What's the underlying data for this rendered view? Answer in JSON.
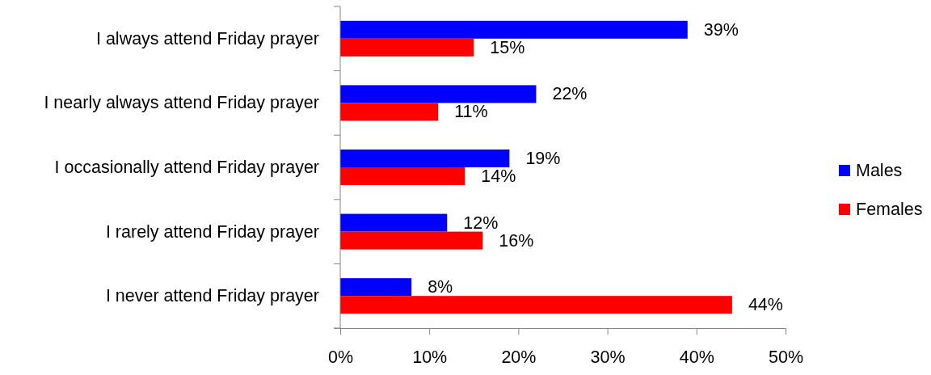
{
  "chart_data": {
    "type": "bar",
    "orientation": "horizontal",
    "categories": [
      "I always attend Friday prayer",
      "I nearly always attend Friday prayer",
      "I occasionally attend Friday prayer",
      "I rarely attend Friday prayer",
      "I never attend Friday prayer"
    ],
    "series": [
      {
        "name": "Males",
        "color": "#0000ff",
        "values": [
          39,
          22,
          19,
          12,
          8
        ],
        "value_labels": [
          "39%",
          "22%",
          "19%",
          "12%",
          "8%"
        ]
      },
      {
        "name": "Females",
        "color": "#ff0000",
        "values": [
          15,
          11,
          14,
          16,
          44
        ],
        "value_labels": [
          "15%",
          "11%",
          "14%",
          "16%",
          "44%"
        ]
      }
    ],
    "xlim": [
      0,
      50
    ],
    "xticks": [
      {
        "value": 0,
        "label": "0%"
      },
      {
        "value": 10,
        "label": "10%"
      },
      {
        "value": 20,
        "label": "20%"
      },
      {
        "value": 30,
        "label": "30%"
      },
      {
        "value": 40,
        "label": "40%"
      },
      {
        "value": 50,
        "label": "50%"
      }
    ],
    "legend": "right"
  }
}
